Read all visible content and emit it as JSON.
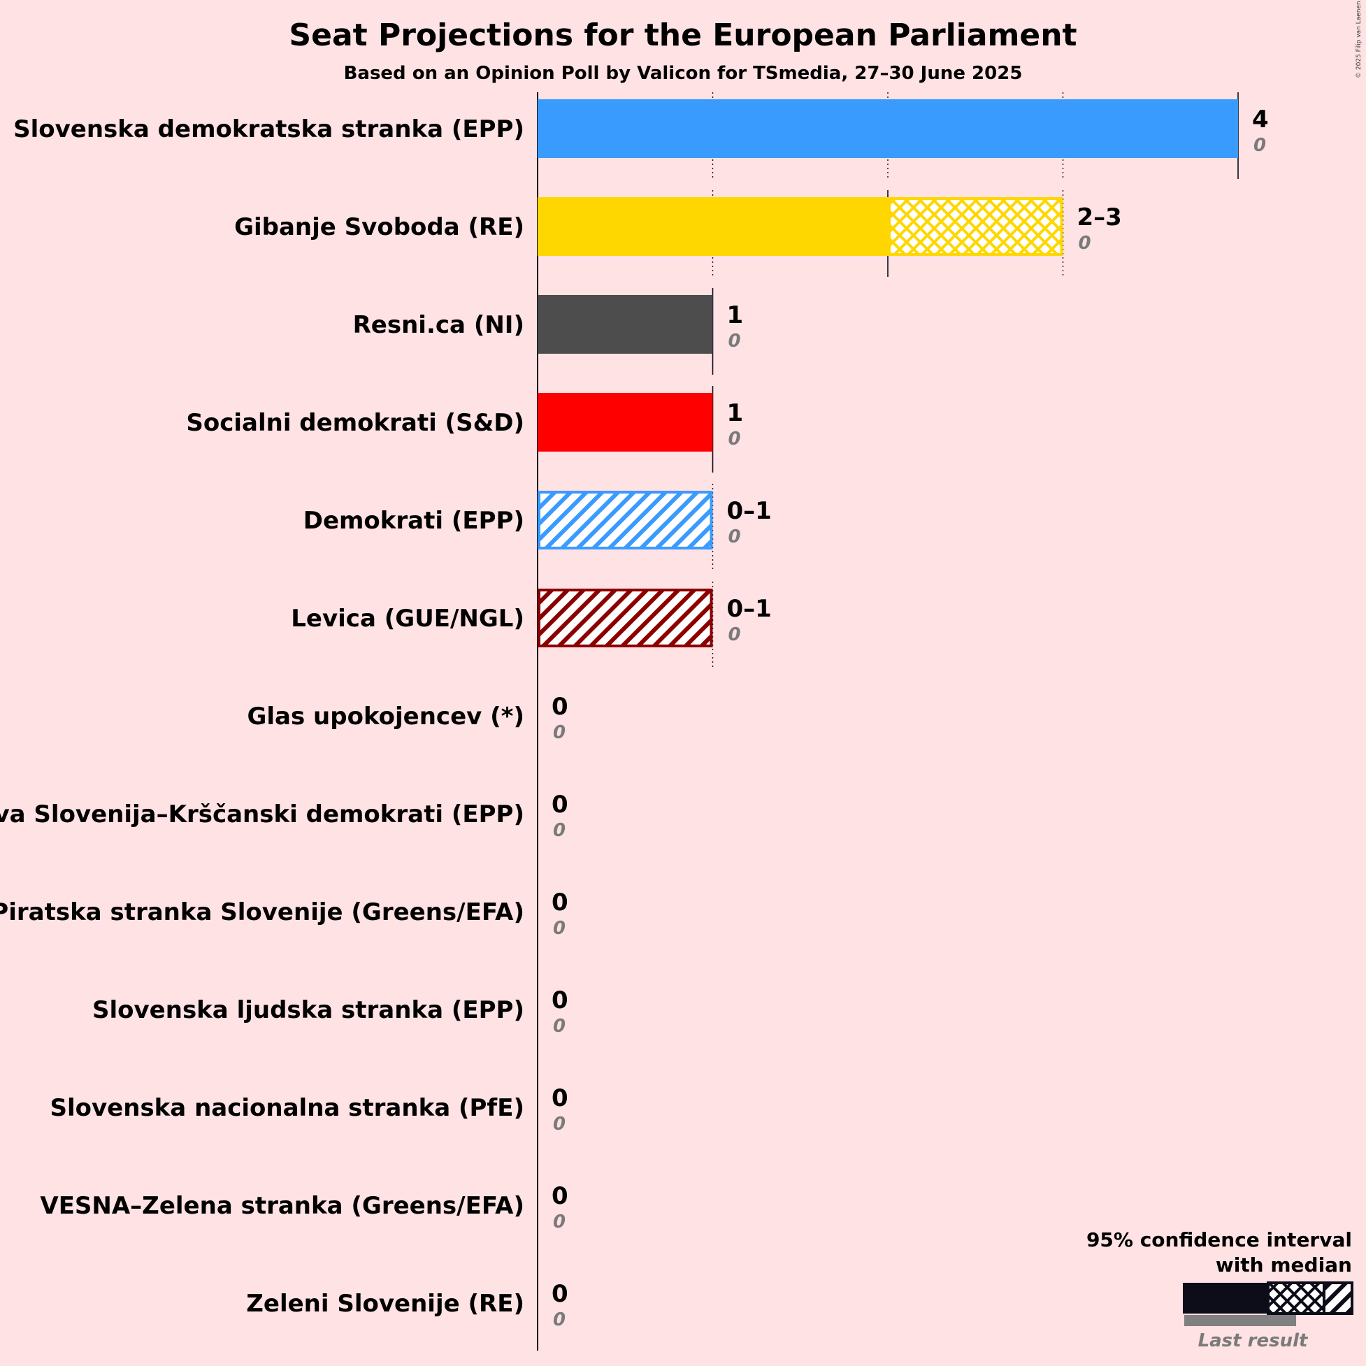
{
  "title": "Seat Projections for the European Parliament",
  "subtitle": "Based on an Opinion Poll by Valicon for TSmedia, 27–30 June 2025",
  "copyright": "© 2025 Filip van Laenen",
  "legend": {
    "line1": "95% confidence interval",
    "line2": "with median",
    "last_result": "Last result"
  },
  "chart_data": {
    "type": "bar",
    "orientation": "horizontal",
    "x_range": [
      0,
      4
    ],
    "gridlines": [
      1,
      2,
      3,
      4
    ],
    "parties": [
      {
        "name": "Slovenska demokratska stranka (EPP)",
        "low": 4,
        "median": 4,
        "high": 4,
        "range_label": "4",
        "last_result": 0,
        "color": "#3a9bff"
      },
      {
        "name": "Gibanje Svoboda (RE)",
        "low": 2,
        "median": 2,
        "high": 3,
        "range_label": "2–3",
        "last_result": 0,
        "color": "#ffd700"
      },
      {
        "name": "Resni.ca (NI)",
        "low": 1,
        "median": 1,
        "high": 1,
        "range_label": "1",
        "last_result": 0,
        "color": "#4d4d4d"
      },
      {
        "name": "Socialni demokrati (S&D)",
        "low": 1,
        "median": 1,
        "high": 1,
        "range_label": "1",
        "last_result": 0,
        "color": "#ff0000"
      },
      {
        "name": "Demokrati (EPP)",
        "low": 0,
        "median": 0,
        "high": 1,
        "range_label": "0–1",
        "last_result": 0,
        "color": "#3a9bff"
      },
      {
        "name": "Levica (GUE/NGL)",
        "low": 0,
        "median": 0,
        "high": 1,
        "range_label": "0–1",
        "last_result": 0,
        "color": "#8b0000"
      },
      {
        "name": "Glas upokojencev (*)",
        "low": 0,
        "median": 0,
        "high": 0,
        "range_label": "0",
        "last_result": 0,
        "color": "#888888"
      },
      {
        "name": "Nova Slovenija–Krščanski demokrati (EPP)",
        "low": 0,
        "median": 0,
        "high": 0,
        "range_label": "0",
        "last_result": 0,
        "color": "#3a9bff"
      },
      {
        "name": "Piratska stranka Slovenije (Greens/EFA)",
        "low": 0,
        "median": 0,
        "high": 0,
        "range_label": "0",
        "last_result": 0,
        "color": "#000000"
      },
      {
        "name": "Slovenska ljudska stranka (EPP)",
        "low": 0,
        "median": 0,
        "high": 0,
        "range_label": "0",
        "last_result": 0,
        "color": "#3a9bff"
      },
      {
        "name": "Slovenska nacionalna stranka (PfE)",
        "low": 0,
        "median": 0,
        "high": 0,
        "range_label": "0",
        "last_result": 0,
        "color": "#00008b"
      },
      {
        "name": "VESNA–Zelena stranka (Greens/EFA)",
        "low": 0,
        "median": 0,
        "high": 0,
        "range_label": "0",
        "last_result": 0,
        "color": "#00aa00"
      },
      {
        "name": "Zeleni Slovenije (RE)",
        "low": 0,
        "median": 0,
        "high": 0,
        "range_label": "0",
        "last_result": 0,
        "color": "#00aa00"
      }
    ]
  }
}
